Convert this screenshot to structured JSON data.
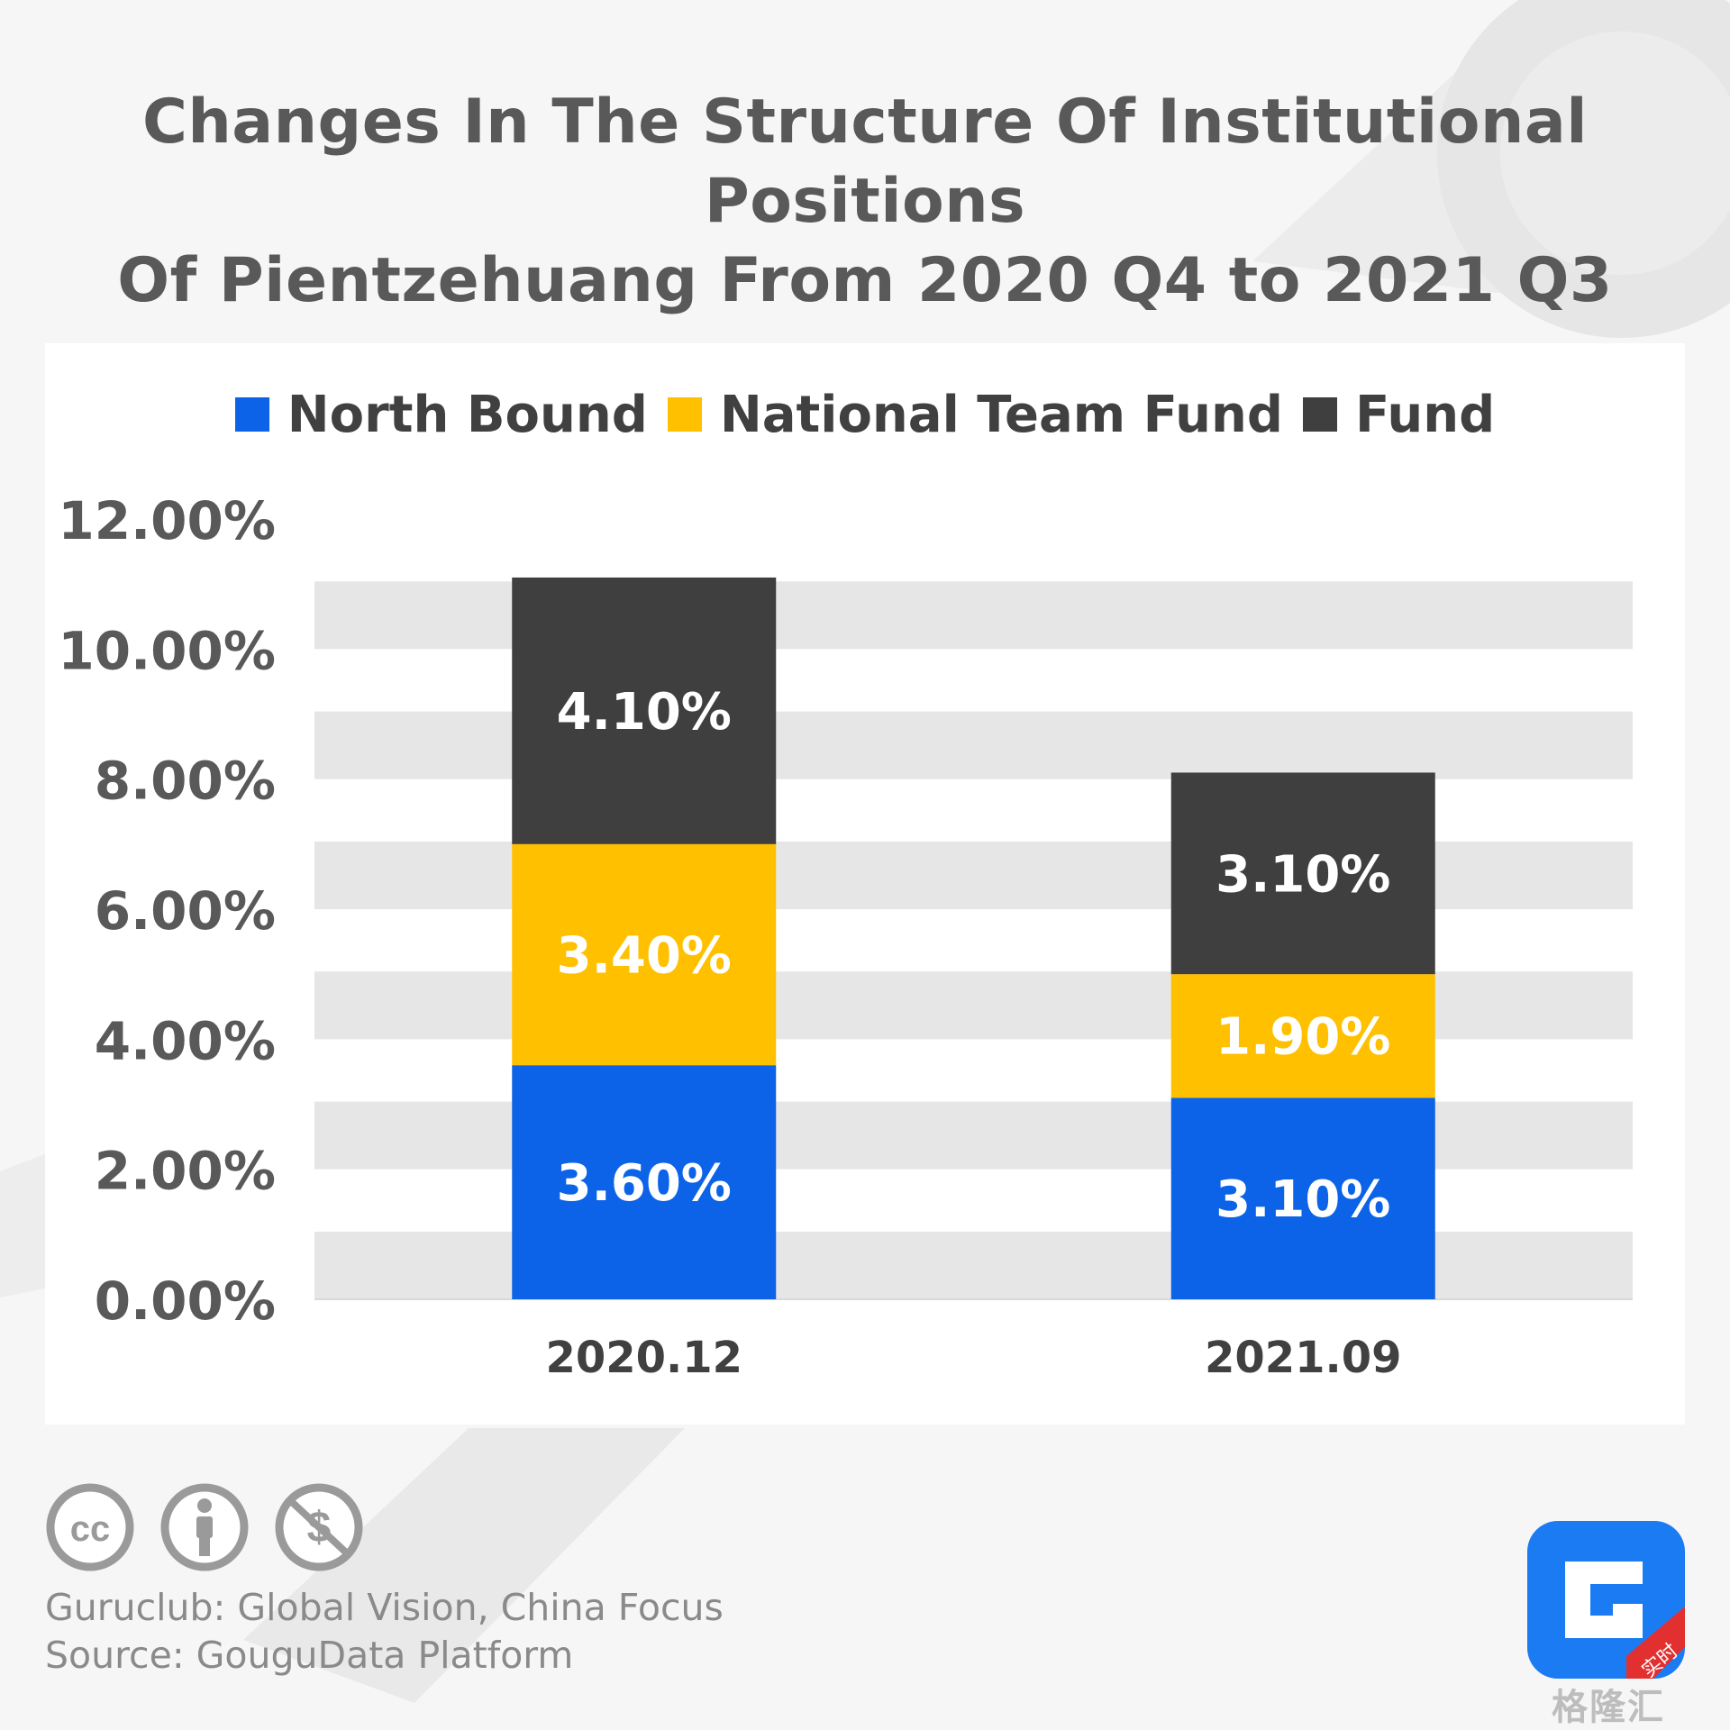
{
  "title": {
    "line1": "Changes In The Structure Of Institutional Positions",
    "line2": "Of Pientzehuang From 2020 Q4 to 2021 Q3"
  },
  "legend": [
    {
      "label": "North Bound",
      "color": "#0c63e7"
    },
    {
      "label": "National Team Fund",
      "color": "#ffc000"
    },
    {
      "label": "Fund",
      "color": "#3f3f3f"
    }
  ],
  "chart_data": {
    "type": "bar",
    "stacked": true,
    "title": "Changes In The Structure Of Institutional Positions Of Pientzehuang From 2020 Q4 to 2021 Q3",
    "categories": [
      "2020.12",
      "2021.09"
    ],
    "series": [
      {
        "name": "North Bound",
        "values": [
          3.6,
          3.1
        ],
        "labels": [
          "3.60%",
          "3.10%"
        ],
        "color": "#0c63e7"
      },
      {
        "name": "National Team Fund",
        "values": [
          3.4,
          1.9
        ],
        "labels": [
          "3.40%",
          "1.90%"
        ],
        "color": "#ffc000"
      },
      {
        "name": "Fund",
        "values": [
          4.1,
          3.1
        ],
        "labels": [
          "4.10%",
          "3.10%"
        ],
        "color": "#3f3f3f"
      }
    ],
    "ylim": [
      0,
      12
    ],
    "yticks": [
      "0.00%",
      "2.00%",
      "4.00%",
      "6.00%",
      "8.00%",
      "10.00%",
      "12.00%"
    ],
    "grid": "alternating horizontal bands",
    "legend_position": "top-center"
  },
  "footer": {
    "line1": "Guruclub: Global Vision, China Focus",
    "line2": "Source: GouguData Platform"
  },
  "license_icons": [
    "cc-icon",
    "attribution-icon",
    "noncommercial-icon"
  ],
  "watermark": {
    "text": "格隆汇",
    "badge": "实时"
  }
}
